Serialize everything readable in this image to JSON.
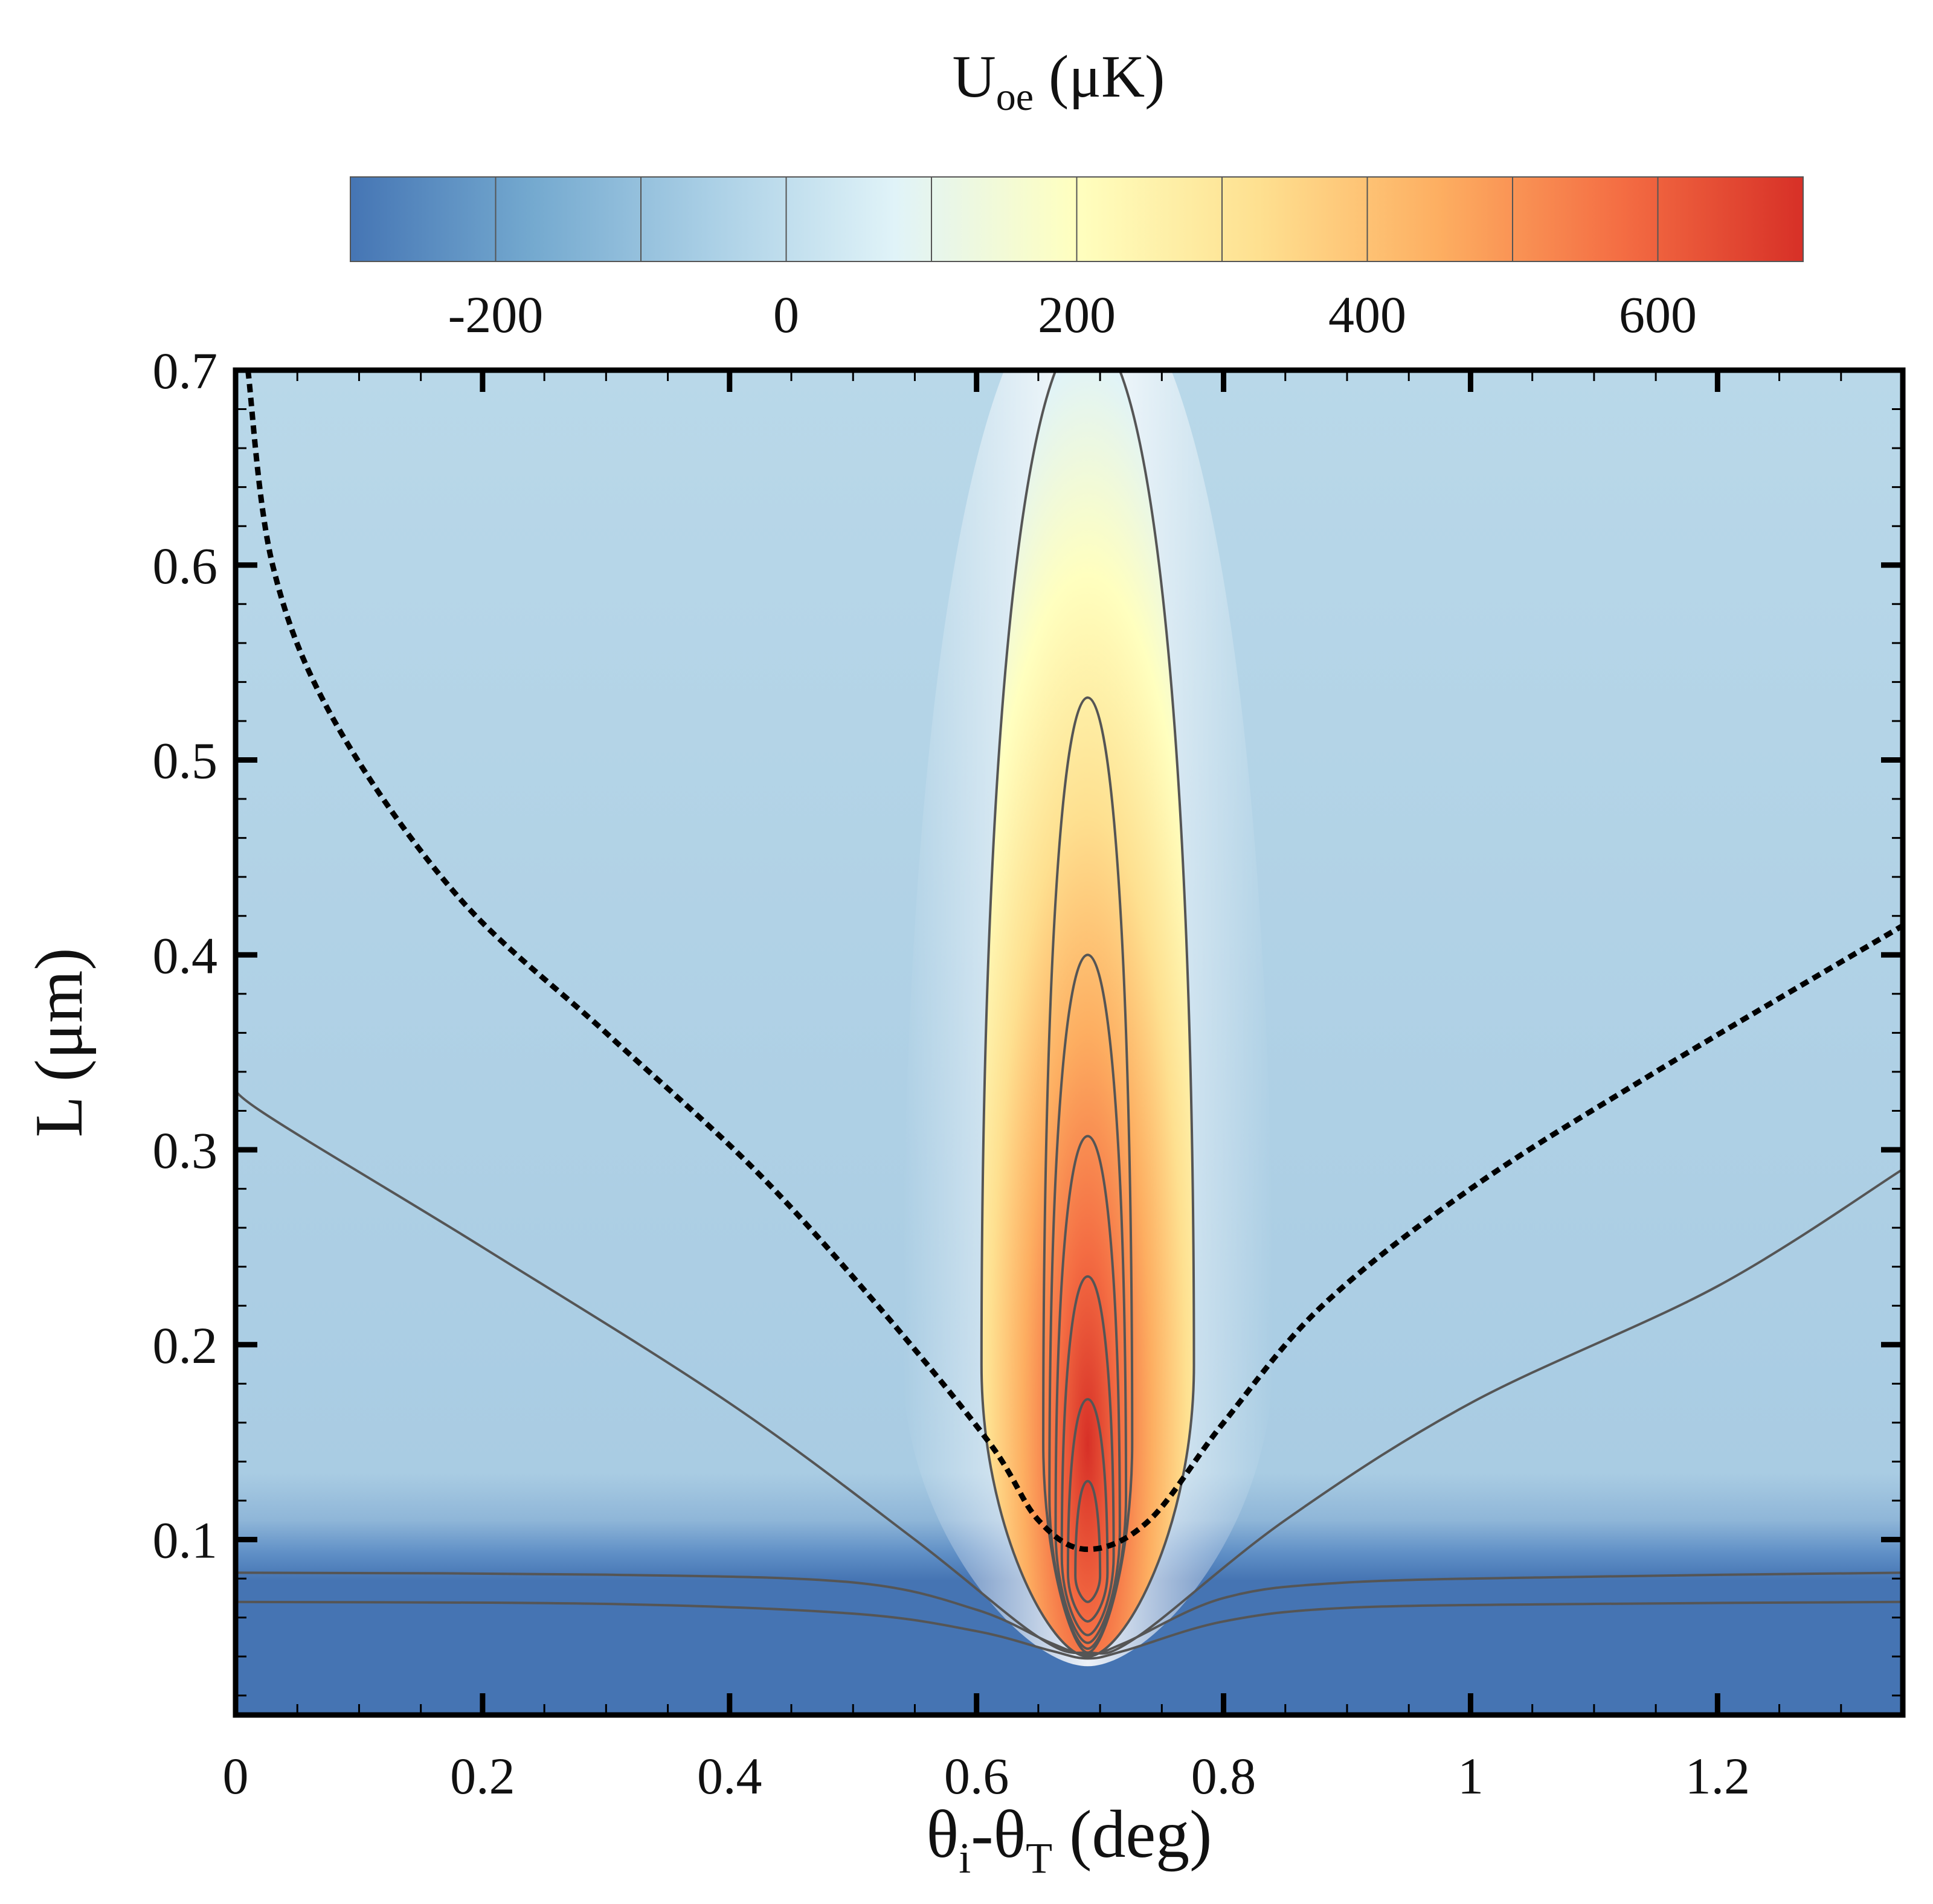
{
  "chart_data": {
    "type": "heatmap",
    "title": "",
    "colorbar": {
      "title_main": "U",
      "title_sub": "oe",
      "title_unit": " (μK)",
      "ticks": [
        "-200",
        "0",
        "200",
        "400",
        "600"
      ],
      "tick_values": [
        -200,
        0,
        200,
        400,
        600
      ],
      "range": [
        -300,
        700
      ],
      "colors": [
        "#4575b4",
        "#74a9cf",
        "#abd0e6",
        "#e0f3f8",
        "#ffffbf",
        "#fee090",
        "#fdae61",
        "#f46d43",
        "#d73027"
      ]
    },
    "xlabel_parts": [
      "θ",
      "i",
      "-θ",
      "T",
      " (deg)"
    ],
    "ylabel": "L (μm)",
    "xlim": [
      0,
      1.35
    ],
    "ylim": [
      0.01,
      0.7
    ],
    "xticks": [
      "0",
      "0.2",
      "0.4",
      "0.6",
      "0.8",
      "1",
      "1.2"
    ],
    "xtick_values": [
      0,
      0.2,
      0.4,
      0.6,
      0.8,
      1.0,
      1.2
    ],
    "yticks": [
      "0.1",
      "0.2",
      "0.3",
      "0.4",
      "0.5",
      "0.6",
      "0.7"
    ],
    "ytick_values": [
      0.1,
      0.2,
      0.3,
      0.4,
      0.5,
      0.6,
      0.7
    ],
    "peak": {
      "x": 0.69,
      "y": 0.12,
      "value": 700
    },
    "resonance_line": [
      {
        "x": 0.01,
        "y": 0.7
      },
      {
        "x": 0.03,
        "y": 0.6
      },
      {
        "x": 0.08,
        "y": 0.52
      },
      {
        "x": 0.18,
        "y": 0.43
      },
      {
        "x": 0.3,
        "y": 0.36
      },
      {
        "x": 0.42,
        "y": 0.29
      },
      {
        "x": 0.52,
        "y": 0.22
      },
      {
        "x": 0.61,
        "y": 0.15
      },
      {
        "x": 0.65,
        "y": 0.11
      },
      {
        "x": 0.69,
        "y": 0.095
      },
      {
        "x": 0.74,
        "y": 0.11
      },
      {
        "x": 0.8,
        "y": 0.16
      },
      {
        "x": 0.88,
        "y": 0.22
      },
      {
        "x": 1.0,
        "y": 0.28
      },
      {
        "x": 1.15,
        "y": 0.34
      },
      {
        "x": 1.35,
        "y": 0.415
      }
    ],
    "contours": [
      {
        "name": "contour-wide",
        "points": [
          {
            "x": 0.0,
            "y": 0.335
          },
          {
            "x": 0.02,
            "y": 0.32
          },
          {
            "x": 0.2,
            "y": 0.25
          },
          {
            "x": 0.4,
            "y": 0.17
          },
          {
            "x": 0.55,
            "y": 0.1
          },
          {
            "x": 0.65,
            "y": 0.05
          },
          {
            "x": 0.69,
            "y": 0.042
          },
          {
            "x": 0.73,
            "y": 0.05
          },
          {
            "x": 0.85,
            "y": 0.11
          },
          {
            "x": 1.0,
            "y": 0.17
          },
          {
            "x": 1.2,
            "y": 0.23
          },
          {
            "x": 1.35,
            "y": 0.29
          }
        ]
      },
      {
        "name": "contour-low-upper",
        "points": [
          {
            "x": 0.0,
            "y": 0.083
          },
          {
            "x": 0.3,
            "y": 0.082
          },
          {
            "x": 0.5,
            "y": 0.078
          },
          {
            "x": 0.6,
            "y": 0.064
          },
          {
            "x": 0.66,
            "y": 0.047
          },
          {
            "x": 0.69,
            "y": 0.041
          },
          {
            "x": 0.72,
            "y": 0.047
          },
          {
            "x": 0.8,
            "y": 0.07
          },
          {
            "x": 0.9,
            "y": 0.078
          },
          {
            "x": 1.1,
            "y": 0.081
          },
          {
            "x": 1.35,
            "y": 0.083
          }
        ]
      },
      {
        "name": "contour-low-lower",
        "points": [
          {
            "x": 0.0,
            "y": 0.068
          },
          {
            "x": 0.3,
            "y": 0.067
          },
          {
            "x": 0.5,
            "y": 0.062
          },
          {
            "x": 0.6,
            "y": 0.053
          },
          {
            "x": 0.66,
            "y": 0.043
          },
          {
            "x": 0.69,
            "y": 0.039
          },
          {
            "x": 0.72,
            "y": 0.043
          },
          {
            "x": 0.8,
            "y": 0.058
          },
          {
            "x": 0.9,
            "y": 0.065
          },
          {
            "x": 1.1,
            "y": 0.067
          },
          {
            "x": 1.35,
            "y": 0.068
          }
        ]
      }
    ],
    "loops": [
      {
        "name": "contour-loop-1",
        "top": 0.72,
        "bottom": 0.04,
        "half_width_deg": 0.086
      },
      {
        "name": "contour-loop-2",
        "top": 0.532,
        "bottom": 0.042,
        "half_width_deg": 0.036
      },
      {
        "name": "contour-loop-3",
        "top": 0.4,
        "bottom": 0.044,
        "half_width_deg": 0.031
      },
      {
        "name": "contour-loop-4",
        "top": 0.307,
        "bottom": 0.047,
        "half_width_deg": 0.026
      },
      {
        "name": "contour-loop-5",
        "top": 0.235,
        "bottom": 0.051,
        "half_width_deg": 0.021
      },
      {
        "name": "contour-loop-6",
        "top": 0.172,
        "bottom": 0.058,
        "half_width_deg": 0.016
      },
      {
        "name": "contour-loop-7",
        "top": 0.13,
        "bottom": 0.068,
        "half_width_deg": 0.01
      }
    ]
  }
}
